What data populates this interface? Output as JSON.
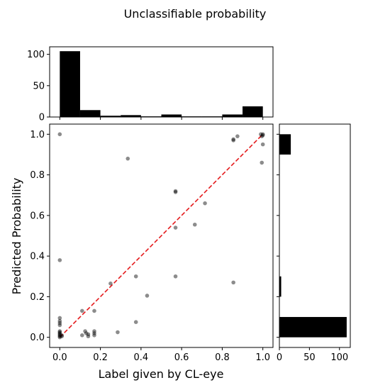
{
  "chart_data": {
    "type": "scatter",
    "title": "Unclassifiable  probability",
    "xlabel": "Label given by CL-eye",
    "ylabel": "Predicted Probability",
    "xlim": [
      -0.05,
      1.05
    ],
    "ylim": [
      -0.05,
      1.05
    ],
    "xticks": [
      "0.0",
      "0.2",
      "0.4",
      "0.6",
      "0.8",
      "1.0"
    ],
    "yticks": [
      "0.0",
      "0.2",
      "0.4",
      "0.6",
      "0.8",
      "1.0"
    ],
    "grid": false,
    "colors": {
      "points": "#000000",
      "reference_line": "#e41a1c",
      "bars": "#000000"
    },
    "points": [
      {
        "x": 0.0,
        "y": 0.0
      },
      {
        "x": 0.0,
        "y": 0.005
      },
      {
        "x": 0.0,
        "y": 0.01
      },
      {
        "x": 0.0,
        "y": 0.015
      },
      {
        "x": 0.0,
        "y": 0.02
      },
      {
        "x": 0.0,
        "y": 0.025
      },
      {
        "x": 0.0,
        "y": 0.03
      },
      {
        "x": 0.0,
        "y": 0.06
      },
      {
        "x": 0.0,
        "y": 0.07
      },
      {
        "x": 0.0,
        "y": 0.08
      },
      {
        "x": 0.0,
        "y": 0.095
      },
      {
        "x": 0.0,
        "y": 0.38
      },
      {
        "x": 0.0,
        "y": 1.0
      },
      {
        "x": 0.01,
        "y": 0.005
      },
      {
        "x": 0.01,
        "y": 0.01
      },
      {
        "x": 0.11,
        "y": 0.13
      },
      {
        "x": 0.11,
        "y": 0.01
      },
      {
        "x": 0.125,
        "y": 0.03
      },
      {
        "x": 0.13,
        "y": 0.02
      },
      {
        "x": 0.14,
        "y": 0.005
      },
      {
        "x": 0.14,
        "y": 0.015
      },
      {
        "x": 0.17,
        "y": 0.13
      },
      {
        "x": 0.17,
        "y": 0.02
      },
      {
        "x": 0.17,
        "y": 0.01
      },
      {
        "x": 0.17,
        "y": 0.03
      },
      {
        "x": 0.25,
        "y": 0.265
      },
      {
        "x": 0.285,
        "y": 0.025
      },
      {
        "x": 0.335,
        "y": 0.88
      },
      {
        "x": 0.375,
        "y": 0.3
      },
      {
        "x": 0.375,
        "y": 0.075
      },
      {
        "x": 0.43,
        "y": 0.205
      },
      {
        "x": 0.57,
        "y": 0.72
      },
      {
        "x": 0.57,
        "y": 0.715
      },
      {
        "x": 0.57,
        "y": 0.54
      },
      {
        "x": 0.57,
        "y": 0.3
      },
      {
        "x": 0.665,
        "y": 0.555
      },
      {
        "x": 0.715,
        "y": 0.66
      },
      {
        "x": 0.855,
        "y": 0.975
      },
      {
        "x": 0.855,
        "y": 0.97
      },
      {
        "x": 0.855,
        "y": 0.27
      },
      {
        "x": 0.875,
        "y": 0.99
      },
      {
        "x": 1.0,
        "y": 1.0
      },
      {
        "x": 1.0,
        "y": 0.995
      },
      {
        "x": 0.995,
        "y": 0.99
      },
      {
        "x": 1.0,
        "y": 0.95
      },
      {
        "x": 0.995,
        "y": 0.86
      },
      {
        "x": 0.99,
        "y": 1.0
      }
    ],
    "reference_line": {
      "x": [
        0,
        1
      ],
      "y": [
        0,
        1
      ],
      "style": "dashed"
    },
    "top_histogram": {
      "bin_edges": [
        0.0,
        0.1,
        0.2,
        0.3,
        0.4,
        0.5,
        0.6,
        0.7,
        0.8,
        0.9,
        1.0
      ],
      "counts": [
        105,
        11,
        2,
        3,
        1,
        4,
        1,
        1,
        4,
        17
      ],
      "ylim": [
        0,
        112
      ],
      "yticks": [
        "0",
        "50",
        "100"
      ]
    },
    "right_histogram": {
      "bin_edges": [
        0.0,
        0.1,
        0.2,
        0.3,
        0.4,
        0.5,
        0.6,
        0.7,
        0.8,
        0.9,
        1.0
      ],
      "counts": [
        112,
        0,
        3,
        0,
        0,
        0,
        0,
        0,
        0,
        19
      ],
      "xlim": [
        0,
        118
      ],
      "xticks": [
        "0",
        "50",
        "100"
      ]
    }
  }
}
